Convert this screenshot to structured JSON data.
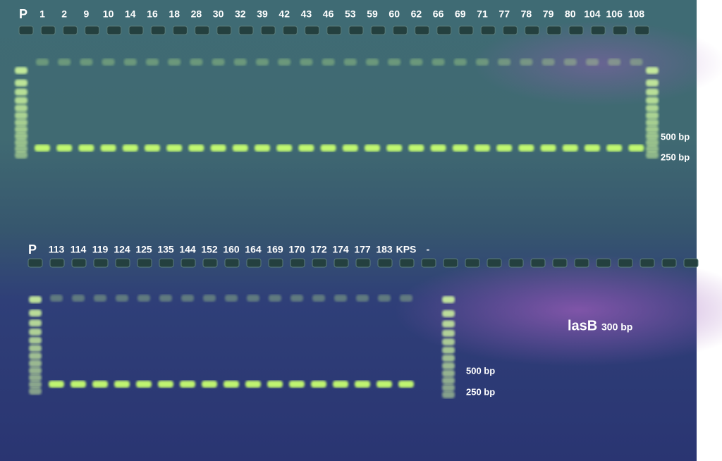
{
  "top_gel": {
    "lanes": [
      "P",
      "1",
      "2",
      "9",
      "10",
      "14",
      "16",
      "18",
      "28",
      "30",
      "32",
      "39",
      "42",
      "43",
      "46",
      "53",
      "59",
      "60",
      "62",
      "66",
      "69",
      "71",
      "77",
      "78",
      "79",
      "80",
      "104",
      "106",
      "108"
    ],
    "markers": [
      "500 bp",
      "250 bp"
    ]
  },
  "bottom_gel": {
    "lanes": [
      "P",
      "113",
      "114",
      "119",
      "124",
      "125",
      "135",
      "144",
      "152",
      "160",
      "164",
      "169",
      "170",
      "172",
      "174",
      "177",
      "183",
      "KPS",
      "-"
    ],
    "markers": [
      "500 bp",
      "250 bp"
    ]
  },
  "gene_label": {
    "name": "lasB",
    "size": "300 bp"
  }
}
